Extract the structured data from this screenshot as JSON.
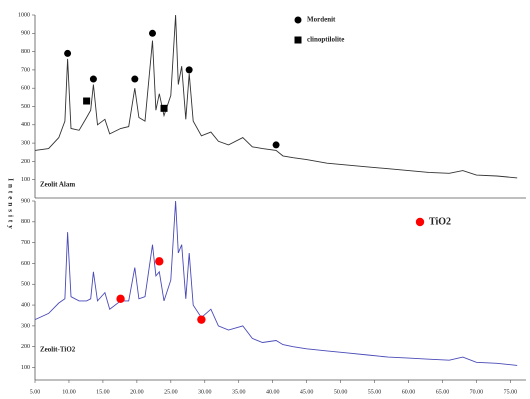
{
  "chart_data": [
    {
      "type": "line",
      "ylabel": "Intensity",
      "xlim": [
        5,
        77.3
      ],
      "ylim": [
        0,
        1000
      ],
      "yticks": [
        100,
        200,
        300,
        400,
        500,
        600,
        700,
        800,
        900,
        1000
      ],
      "series": [
        {
          "name": "Zeolit Alam",
          "color": "#333333",
          "x": [
            5,
            7,
            8.5,
            9.4,
            9.8,
            10.3,
            11.5,
            12.6,
            13.2,
            13.6,
            14.2,
            15.3,
            16,
            17.6,
            18.8,
            19.7,
            20.3,
            21.2,
            22.3,
            22.8,
            23.3,
            24,
            25,
            25.7,
            26.1,
            26.6,
            27.2,
            27.7,
            28.3,
            29.5,
            30.9,
            32,
            33.5,
            35.6,
            37,
            38.5,
            40.5,
            41.5,
            43,
            45,
            48,
            51,
            54,
            57,
            60,
            63,
            66,
            68,
            70,
            73,
            76
          ],
          "values": [
            260,
            270,
            330,
            420,
            760,
            380,
            370,
            440,
            480,
            620,
            400,
            430,
            350,
            380,
            390,
            600,
            440,
            420,
            860,
            480,
            570,
            450,
            560,
            1000,
            620,
            720,
            430,
            680,
            420,
            340,
            360,
            310,
            290,
            330,
            280,
            270,
            260,
            230,
            220,
            210,
            190,
            180,
            170,
            160,
            150,
            140,
            135,
            150,
            125,
            120,
            110
          ]
        }
      ],
      "markers": [
        {
          "name": "Mordenit",
          "shape": "circle",
          "color": "#000000",
          "x": [
            9.8,
            13.6,
            19.7,
            22.3,
            27.7,
            40.5
          ],
          "values": [
            790,
            650,
            650,
            900,
            700,
            290
          ]
        },
        {
          "name": "clinoptilolite",
          "shape": "square",
          "color": "#000000",
          "x": [
            12.6,
            24
          ],
          "values": [
            530,
            490
          ]
        }
      ]
    },
    {
      "type": "line",
      "xlim": [
        5,
        77.3
      ],
      "ylim": [
        40,
        900
      ],
      "yticks": [
        100,
        200,
        300,
        400,
        500,
        600,
        700,
        800,
        900
      ],
      "xticks": [
        {
          "value": 5,
          "label": "5.00"
        },
        {
          "value": 10,
          "label": "10.00"
        },
        {
          "value": 15,
          "label": "15.00"
        },
        {
          "value": 20,
          "label": "20.00"
        },
        {
          "value": 25,
          "label": "25.00"
        },
        {
          "value": 30,
          "label": "30.00"
        },
        {
          "value": 35,
          "label": "35.00"
        },
        {
          "value": 40,
          "label": "40.00"
        },
        {
          "value": 45,
          "label": "45.00"
        },
        {
          "value": 50,
          "label": "50.00"
        },
        {
          "value": 55,
          "label": "55.00"
        },
        {
          "value": 60,
          "label": "60.00"
        },
        {
          "value": 65,
          "label": "65.00"
        },
        {
          "value": 70,
          "label": "70.00"
        },
        {
          "value": 75,
          "label": "75.00"
        }
      ],
      "series": [
        {
          "name": "Zeolit-TiO2",
          "color": "#4a4ab8",
          "x": [
            5,
            7,
            8.5,
            9.4,
            9.8,
            10.3,
            11.5,
            12.6,
            13.2,
            13.6,
            14.2,
            15.3,
            16,
            17.6,
            18.8,
            19.7,
            20.3,
            21.2,
            22.3,
            22.8,
            23.3,
            24,
            25,
            25.7,
            26.1,
            26.6,
            27.2,
            27.7,
            28.3,
            29.5,
            30.9,
            32,
            33.5,
            35.6,
            37,
            38.5,
            40.5,
            41.5,
            43,
            45,
            48,
            51,
            54,
            57,
            60,
            63,
            66,
            68,
            70,
            73,
            76
          ],
          "values": [
            330,
            360,
            410,
            430,
            750,
            440,
            420,
            420,
            430,
            560,
            420,
            460,
            380,
            420,
            420,
            580,
            430,
            440,
            690,
            540,
            560,
            420,
            520,
            900,
            650,
            690,
            430,
            650,
            400,
            340,
            380,
            300,
            280,
            300,
            240,
            220,
            230,
            210,
            200,
            190,
            180,
            170,
            160,
            150,
            145,
            140,
            135,
            150,
            125,
            120,
            110
          ]
        }
      ],
      "markers": [
        {
          "name": "TiO2",
          "shape": "circle",
          "color": "#ff0000",
          "x": [
            17.6,
            23.3,
            29.5
          ],
          "values": [
            430,
            610,
            330
          ]
        }
      ]
    }
  ]
}
